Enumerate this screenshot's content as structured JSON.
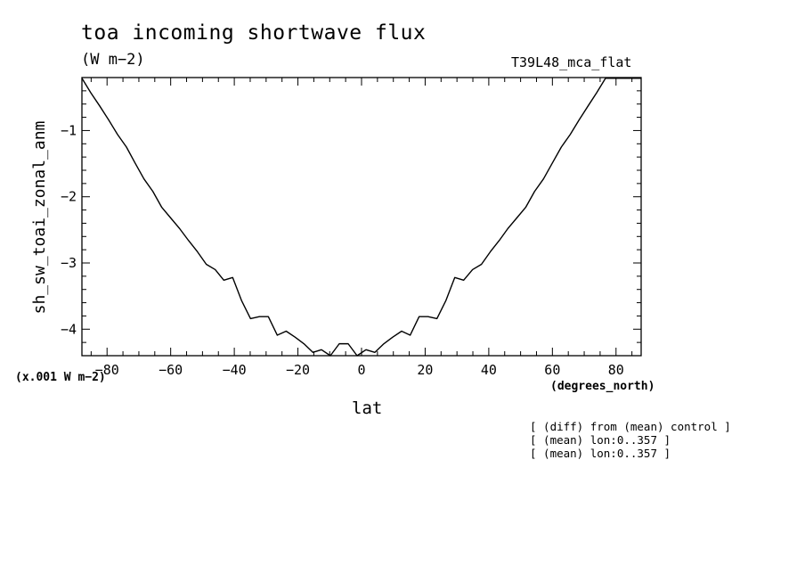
{
  "chart_data": {
    "type": "line",
    "title": "toa incoming shortwave flux",
    "units": "(W m−2)",
    "run_label": "T39L48_mca_flat",
    "xlabel": "lat",
    "x_units": "(degrees_north)",
    "ylabel": "sh_sw_toai_zonal_anm",
    "y_scale_note": "(x.001 W m−2)",
    "xlim": [
      -87.9,
      87.9
    ],
    "ylim": [
      -4.4,
      -0.2
    ],
    "x_ticks": [
      -80,
      -60,
      -40,
      -20,
      0,
      20,
      40,
      60,
      80
    ],
    "x_tick_labels": [
      "−80",
      "−60",
      "−40",
      "−20",
      "0",
      "20",
      "40",
      "60",
      "80"
    ],
    "y_ticks": [
      -4,
      -3,
      -2,
      -1
    ],
    "y_tick_labels": [
      "−4",
      "−3",
      "−2",
      "−1"
    ],
    "grid": false,
    "series": [
      {
        "x": [
          -87.9,
          -85.1,
          -82.3,
          -79.5,
          -76.7,
          -73.9,
          -71.2,
          -68.4,
          -65.6,
          -62.8,
          -60.0,
          -57.2,
          -54.4,
          -51.6,
          -48.8,
          -46.0,
          -43.3,
          -40.5,
          -37.7,
          -34.9,
          -32.1,
          -29.3,
          -26.5,
          -23.7,
          -20.9,
          -18.1,
          -15.3,
          -12.6,
          -9.8,
          -7.0,
          -4.2,
          -1.4,
          1.4,
          4.2,
          7.0,
          9.8,
          12.6,
          15.3,
          18.1,
          20.9,
          23.7,
          26.5,
          29.3,
          32.1,
          34.9,
          37.7,
          40.5,
          43.3,
          46.0,
          48.8,
          51.6,
          54.4,
          57.2,
          60.0,
          62.8,
          65.6,
          68.4,
          71.2,
          73.9,
          76.7,
          79.5,
          82.3,
          85.1,
          87.9
        ],
        "y": [
          -0.21,
          -0.43,
          -0.63,
          -0.84,
          -1.06,
          -1.25,
          -1.49,
          -1.73,
          -1.92,
          -2.16,
          -2.32,
          -2.48,
          -2.66,
          -2.83,
          -3.02,
          -3.1,
          -3.26,
          -3.22,
          -3.57,
          -3.84,
          -3.81,
          -3.81,
          -4.09,
          -4.03,
          -4.12,
          -4.22,
          -4.35,
          -4.31,
          -4.4,
          -4.22,
          -4.22,
          -4.4,
          -4.31,
          -4.35,
          -4.22,
          -4.12,
          -4.03,
          -4.09,
          -3.81,
          -3.81,
          -3.84,
          -3.57,
          -3.22,
          -3.26,
          -3.1,
          -3.02,
          -2.83,
          -2.66,
          -2.48,
          -2.32,
          -2.16,
          -1.92,
          -1.73,
          -1.49,
          -1.25,
          -1.06,
          -0.84,
          -0.63,
          -0.43,
          -0.21,
          -0.21,
          -0.21,
          -0.21,
          -0.21
        ]
      }
    ]
  },
  "notes": [
    "[ (diff) from (mean) control ]",
    "[ (mean) lon:0..357 ]",
    "[ (mean) lon:0..357 ]"
  ]
}
